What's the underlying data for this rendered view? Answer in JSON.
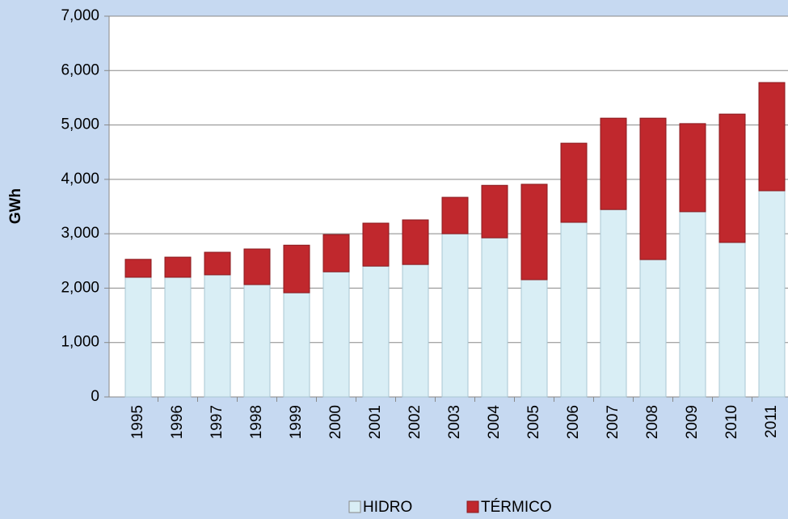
{
  "chart_data": {
    "type": "bar",
    "stacked": true,
    "y_label": "GWh",
    "categories": [
      "1995",
      "1996",
      "1997",
      "1998",
      "1999",
      "2000",
      "2001",
      "2002",
      "2003",
      "2004",
      "2005",
      "2006",
      "2007",
      "2008",
      "2009",
      "2010",
      "2011"
    ],
    "series": [
      {
        "name": "HIDRO",
        "color": "#d9eef5",
        "values": [
          2200,
          2200,
          2245,
          2065,
          1915,
          2300,
          2405,
          2435,
          3000,
          2925,
          2155,
          3210,
          3445,
          2525,
          3405,
          2840,
          3790
        ]
      },
      {
        "name": "TÉRMICO",
        "color": "#c0282d",
        "values": [
          330,
          370,
          415,
          655,
          875,
          685,
          790,
          820,
          670,
          965,
          1755,
          1455,
          1680,
          2600,
          1620,
          2360,
          1990
        ]
      }
    ],
    "ylim": [
      0,
      7000
    ],
    "yticks": [
      0,
      {
        "value": 1000,
        "label": "1,000"
      },
      {
        "value": 2000,
        "label": "2,000"
      },
      {
        "value": 3000,
        "label": "3,000"
      },
      {
        "value": 4000,
        "label": "4,000"
      },
      {
        "value": 5000,
        "label": "5,000"
      },
      {
        "value": 6000,
        "label": "6,000"
      },
      {
        "value": 7000,
        "label": "7,000"
      }
    ],
    "grid": true,
    "legend": "bottom"
  }
}
